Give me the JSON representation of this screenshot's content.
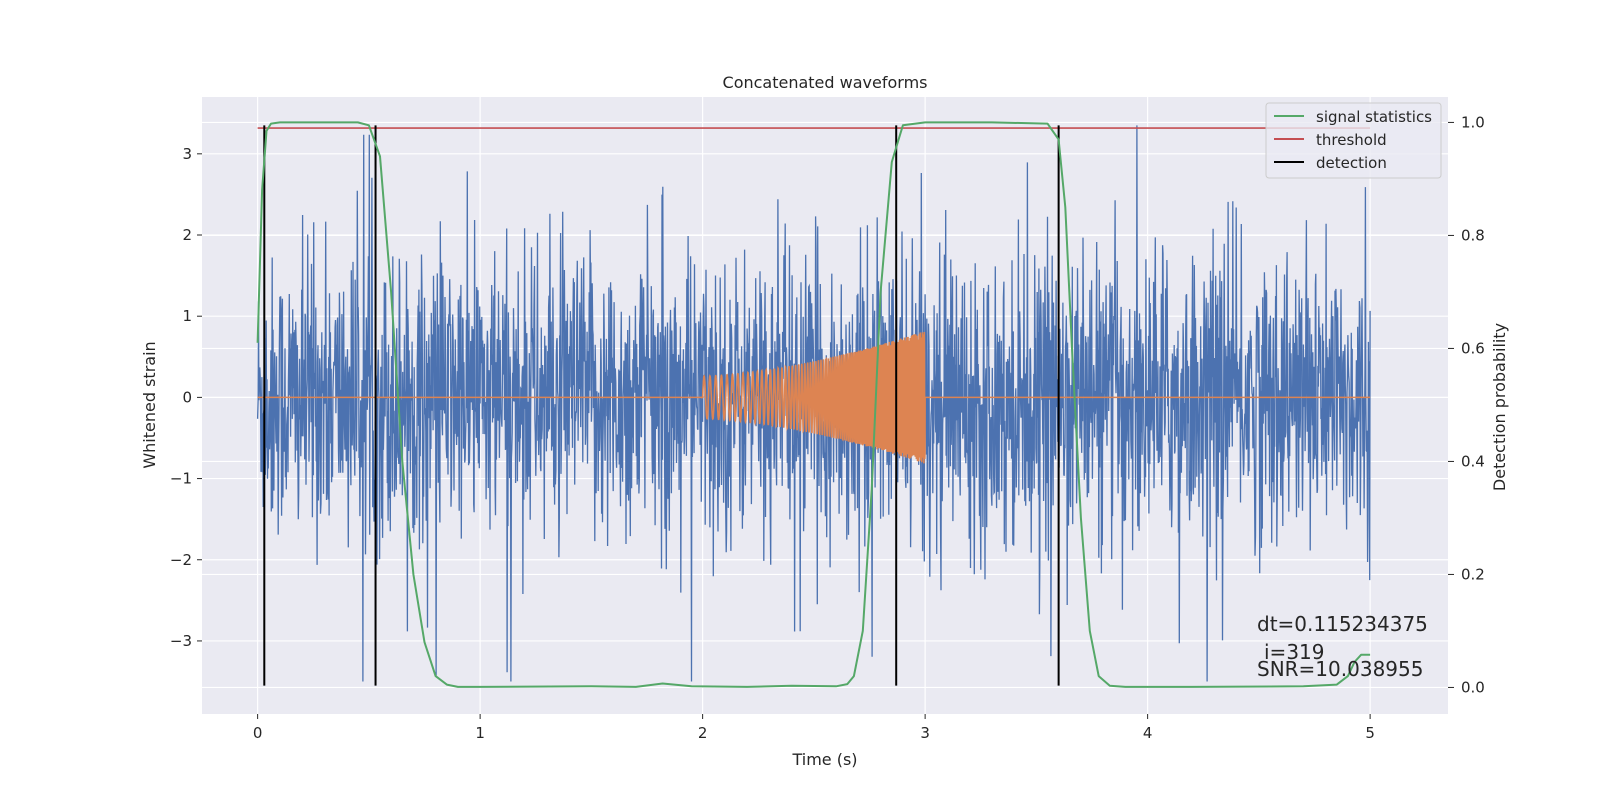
{
  "chart_data": {
    "type": "line",
    "title": "Concatenated waveforms",
    "xlabel": "Time (s)",
    "ylabel": "Whitened strain",
    "y2label": "Detection probability",
    "xlim": [
      -0.25,
      5.35
    ],
    "ylim": [
      -3.9,
      3.7
    ],
    "y2lim": [
      -0.047,
      1.045
    ],
    "xticks": [
      0,
      1,
      2,
      3,
      4,
      5
    ],
    "yticks": [
      -3,
      -2,
      -1,
      0,
      1,
      2,
      3
    ],
    "y2ticks": [
      0.0,
      0.2,
      0.4,
      0.6,
      0.8,
      1.0
    ],
    "xtick_labels": [
      "0",
      "1",
      "2",
      "3",
      "4",
      "5"
    ],
    "ytick_labels": [
      "−3",
      "−2",
      "−1",
      "0",
      "1",
      "2",
      "3"
    ],
    "y2tick_labels": [
      "0.0",
      "0.2",
      "0.4",
      "0.6",
      "0.8",
      "1.0"
    ],
    "grid": true,
    "legend_position": "top-right",
    "colors": {
      "plot_bg": "#EAEAF2",
      "grid": "#FFFFFF",
      "strain": "#4C72B0",
      "template": "#DD8452",
      "statistic": "#55A868",
      "threshold": "#C44E52",
      "detection": "#000000"
    },
    "series": [
      {
        "name": "signal statistics",
        "axis": "right",
        "color": "#55A868",
        "x": [
          0.0,
          0.02,
          0.04,
          0.06,
          0.1,
          0.3,
          0.45,
          0.5,
          0.55,
          0.6,
          0.65,
          0.7,
          0.75,
          0.8,
          0.85,
          0.9,
          1.0,
          1.5,
          1.7,
          1.82,
          1.95,
          2.2,
          2.4,
          2.6,
          2.65,
          2.68,
          2.72,
          2.76,
          2.8,
          2.85,
          2.9,
          3.0,
          3.3,
          3.55,
          3.6,
          3.63,
          3.66,
          3.7,
          3.74,
          3.78,
          3.83,
          3.9,
          4.2,
          4.7,
          4.85,
          4.9,
          4.93,
          4.96,
          5.0
        ],
        "y": [
          0.61,
          0.88,
          0.985,
          0.998,
          1.0,
          1.0,
          1.0,
          0.995,
          0.94,
          0.7,
          0.4,
          0.2,
          0.08,
          0.02,
          0.005,
          0.001,
          0.001,
          0.002,
          0.001,
          0.007,
          0.002,
          0.001,
          0.003,
          0.002,
          0.006,
          0.02,
          0.1,
          0.35,
          0.7,
          0.93,
          0.995,
          1.0,
          1.0,
          0.998,
          0.97,
          0.85,
          0.6,
          0.3,
          0.1,
          0.02,
          0.003,
          0.001,
          0.001,
          0.002,
          0.005,
          0.02,
          0.045,
          0.058,
          0.058
        ]
      },
      {
        "name": "threshold",
        "axis": "right",
        "color": "#C44E52",
        "x": [
          0.0,
          5.0
        ],
        "y": [
          0.99,
          0.99
        ]
      },
      {
        "name": "detection",
        "axis": "left",
        "color": "#000000",
        "x": [
          0.03,
          0.53,
          2.87,
          3.6
        ]
      }
    ],
    "background_traces": [
      {
        "label": "whitened strain (noise)",
        "color": "#4C72B0",
        "x_range": [
          0.0,
          5.0
        ],
        "amplitude_range": [
          -3.5,
          3.35
        ]
      },
      {
        "label": "injected chirp",
        "color": "#DD8452",
        "x_range": [
          2.0,
          3.0
        ],
        "amplitude_range": [
          -0.82,
          0.82
        ]
      }
    ],
    "annotations": [
      "dt=0.115234375",
      "i=319",
      "SNR=10.038955"
    ]
  }
}
